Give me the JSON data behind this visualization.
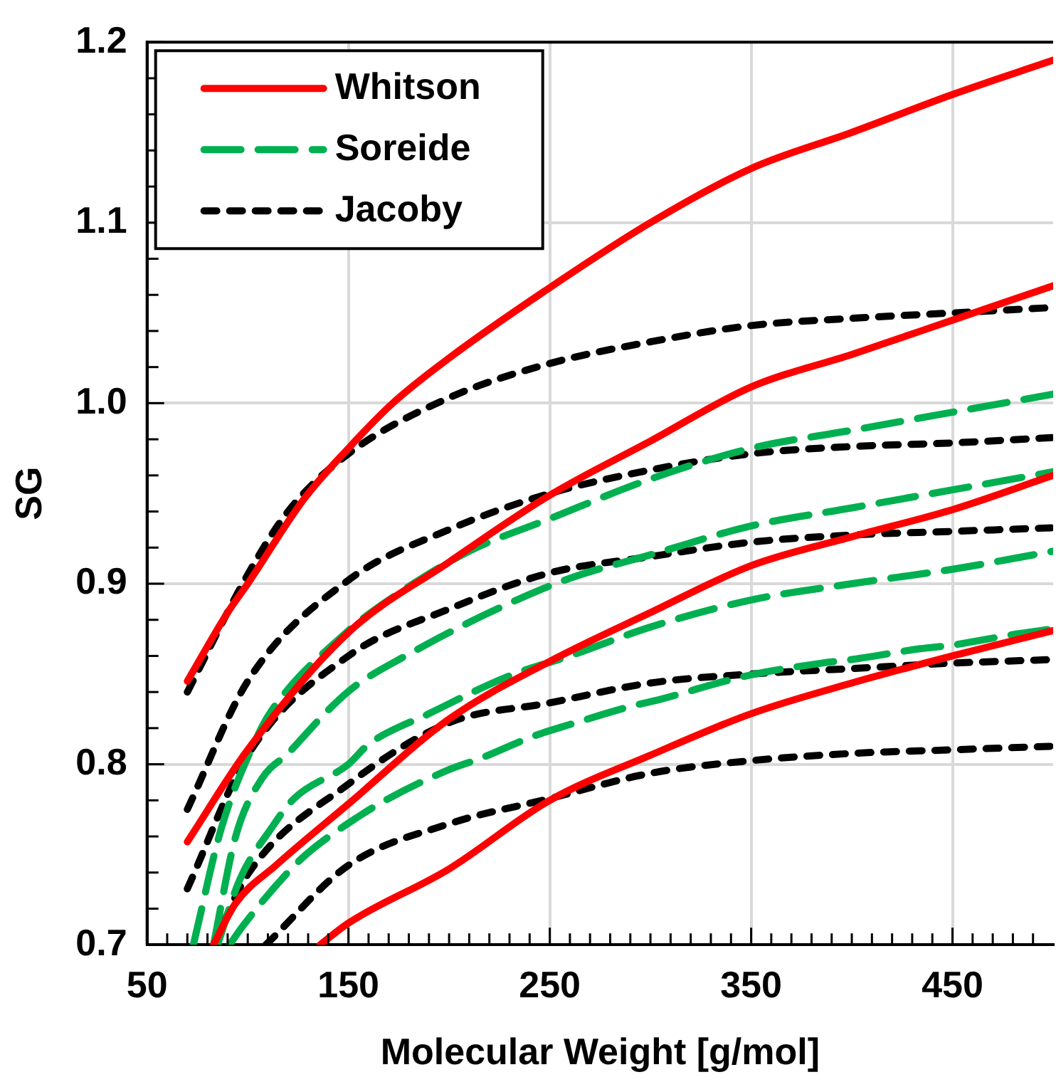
{
  "chart_data": {
    "type": "line",
    "xlabel": "Molecular Weight [g/mol]",
    "ylabel": "SG",
    "xlim": [
      50,
      500
    ],
    "ylim": [
      0.7,
      1.2
    ],
    "xticks": [
      50,
      {
        "value": 60,
        "label": null
      },
      {
        "value": 70,
        "label": null
      },
      {
        "value": 80,
        "label": null
      },
      {
        "value": 90,
        "label": null
      },
      {
        "value": 100,
        "label": null
      },
      {
        "value": 110,
        "label": null
      },
      {
        "value": 120,
        "label": null
      },
      {
        "value": 130,
        "label": null
      },
      {
        "value": 140,
        "label": null
      },
      150,
      {
        "value": 160,
        "label": null
      },
      {
        "value": 170,
        "label": null
      },
      {
        "value": 180,
        "label": null
      },
      {
        "value": 190,
        "label": null
      },
      {
        "value": 200,
        "label": null
      },
      {
        "value": 210,
        "label": null
      },
      {
        "value": 220,
        "label": null
      },
      {
        "value": 230,
        "label": null
      },
      {
        "value": 240,
        "label": null
      },
      250,
      {
        "value": 260,
        "label": null
      },
      {
        "value": 270,
        "label": null
      },
      {
        "value": 280,
        "label": null
      },
      {
        "value": 290,
        "label": null
      },
      {
        "value": 300,
        "label": null
      },
      {
        "value": 310,
        "label": null
      },
      {
        "value": 320,
        "label": null
      },
      {
        "value": 330,
        "label": null
      },
      {
        "value": 340,
        "label": null
      },
      350,
      {
        "value": 360,
        "label": null
      },
      {
        "value": 370,
        "label": null
      },
      {
        "value": 380,
        "label": null
      },
      {
        "value": 390,
        "label": null
      },
      {
        "value": 400,
        "label": null
      },
      {
        "value": 410,
        "label": null
      },
      {
        "value": 420,
        "label": null
      },
      {
        "value": 430,
        "label": null
      },
      {
        "value": 440,
        "label": null
      },
      450,
      {
        "value": 460,
        "label": null
      },
      {
        "value": 470,
        "label": null
      },
      {
        "value": 480,
        "label": null
      },
      {
        "value": 490,
        "label": null
      }
    ],
    "yticks": [
      {
        "value": 0.7,
        "label": "0.7"
      },
      {
        "value": 0.72,
        "label": null
      },
      {
        "value": 0.74,
        "label": null
      },
      {
        "value": 0.76,
        "label": null
      },
      {
        "value": 0.78,
        "label": null
      },
      {
        "value": 0.8,
        "label": "0.8"
      },
      {
        "value": 0.82,
        "label": null
      },
      {
        "value": 0.84,
        "label": null
      },
      {
        "value": 0.86,
        "label": null
      },
      {
        "value": 0.88,
        "label": null
      },
      {
        "value": 0.9,
        "label": "0.9"
      },
      {
        "value": 0.92,
        "label": null
      },
      {
        "value": 0.94,
        "label": null
      },
      {
        "value": 0.96,
        "label": null
      },
      {
        "value": 0.98,
        "label": null
      },
      {
        "value": 1.0,
        "label": "1.0"
      },
      {
        "value": 1.02,
        "label": null
      },
      {
        "value": 1.04,
        "label": null
      },
      {
        "value": 1.06,
        "label": null
      },
      {
        "value": 1.08,
        "label": null
      },
      {
        "value": 1.1,
        "label": "1.1"
      },
      {
        "value": 1.12,
        "label": null
      },
      {
        "value": 1.14,
        "label": null
      },
      {
        "value": 1.16,
        "label": null
      },
      {
        "value": 1.18,
        "label": null
      },
      {
        "value": 1.2,
        "label": "1.2"
      }
    ],
    "grid": true,
    "legend": "top left",
    "marker": "none",
    "series": [
      {
        "name": "Whitson",
        "color": "#ff0000",
        "line_style": "solid",
        "x": [
          70,
          90,
          100,
          128,
          150,
          172,
          200,
          250,
          300,
          350,
          400,
          450,
          500
        ],
        "values": [
          0.846,
          0.884,
          0.9,
          0.947,
          0.975,
          1.0,
          1.025,
          1.064,
          1.1,
          1.13,
          1.15,
          1.171,
          1.19
        ]
      },
      {
        "color": "#ff0000",
        "line_style": "solid",
        "x": [
          70,
          100,
          150,
          200,
          250,
          300,
          350,
          400,
          450,
          500
        ],
        "values": [
          0.757,
          0.808,
          0.873,
          0.912,
          0.949,
          0.979,
          1.009,
          1.027,
          1.046,
          1.065
        ]
      },
      {
        "color": "#ff0000",
        "line_style": "solid",
        "x": [
          83,
          94,
          114,
          150,
          200,
          250,
          300,
          350,
          400,
          450,
          500
        ],
        "values": [
          0.7,
          0.723,
          0.744,
          0.778,
          0.825,
          0.857,
          0.884,
          0.91,
          0.926,
          0.941,
          0.96
        ]
      },
      {
        "color": "#ff0000",
        "line_style": "solid",
        "x": [
          136,
          150,
          200,
          250,
          300,
          350,
          400,
          450,
          500
        ],
        "values": [
          0.7,
          0.712,
          0.742,
          0.78,
          0.805,
          0.828,
          0.845,
          0.86,
          0.874
        ]
      },
      {
        "name": "Soreide",
        "color": "#00b050",
        "line_style": "dashdot",
        "x": [
          73,
          87,
          105,
          112,
          150,
          170,
          210,
          250,
          300,
          350,
          400,
          450,
          500
        ],
        "values": [
          0.7,
          0.765,
          0.816,
          0.83,
          0.874,
          0.891,
          0.918,
          0.936,
          0.958,
          0.975,
          0.985,
          0.995,
          1.005
        ]
      },
      {
        "color": "#00b050",
        "line_style": "dashdot",
        "x": [
          83,
          94,
          107,
          120,
          140,
          153,
          180,
          220,
          260,
          300,
          350,
          400,
          450,
          500
        ],
        "values": [
          0.7,
          0.76,
          0.792,
          0.806,
          0.83,
          0.843,
          0.861,
          0.884,
          0.903,
          0.916,
          0.932,
          0.942,
          0.952,
          0.962
        ]
      },
      {
        "color": "#00b050",
        "line_style": "dashdot",
        "x": [
          85,
          96,
          112,
          123,
          150,
          160,
          190,
          230,
          260,
          300,
          350,
          400,
          450,
          500
        ],
        "values": [
          0.7,
          0.736,
          0.765,
          0.781,
          0.8,
          0.811,
          0.828,
          0.849,
          0.86,
          0.876,
          0.891,
          0.9,
          0.908,
          0.918
        ]
      },
      {
        "color": "#00b050",
        "line_style": "dashdot",
        "x": [
          91,
          98,
          119,
          130,
          155,
          170,
          200,
          215,
          243,
          260,
          290,
          305,
          337,
          352,
          385,
          400,
          434,
          450,
          481,
          500
        ],
        "values": [
          0.7,
          0.711,
          0.739,
          0.751,
          0.771,
          0.781,
          0.797,
          0.803,
          0.816,
          0.822,
          0.832,
          0.836,
          0.846,
          0.85,
          0.856,
          0.858,
          0.864,
          0.866,
          0.872,
          0.875
        ]
      },
      {
        "name": "Jacoby",
        "color": "#000000",
        "line_style": "dashed",
        "x": [
          70,
          100,
          120,
          150,
          200,
          250,
          300,
          350,
          400,
          450,
          500
        ],
        "values": [
          0.84,
          0.905,
          0.94,
          0.972,
          1.003,
          1.022,
          1.034,
          1.043,
          1.047,
          1.05,
          1.053
        ]
      },
      {
        "color": "#000000",
        "line_style": "dashed",
        "x": [
          70,
          100,
          150,
          200,
          250,
          300,
          350,
          400,
          450,
          500
        ],
        "values": [
          0.775,
          0.846,
          0.902,
          0.93,
          0.95,
          0.963,
          0.972,
          0.976,
          0.978,
          0.981
        ]
      },
      {
        "color": "#000000",
        "line_style": "dashed",
        "x": [
          70,
          100,
          150,
          200,
          250,
          300,
          350,
          400,
          450,
          500
        ],
        "values": [
          0.731,
          0.805,
          0.86,
          0.886,
          0.906,
          0.915,
          0.923,
          0.927,
          0.929,
          0.931
        ]
      },
      {
        "color": "#000000",
        "line_style": "dashed",
        "x": [
          83,
          100,
          150,
          200,
          250,
          300,
          350,
          400,
          450,
          500
        ],
        "values": [
          0.7,
          0.739,
          0.789,
          0.823,
          0.834,
          0.845,
          0.85,
          0.853,
          0.856,
          0.858
        ]
      },
      {
        "color": "#000000",
        "line_style": "dashed",
        "x": [
          109,
          150,
          200,
          250,
          300,
          350,
          400,
          450,
          500
        ],
        "values": [
          0.7,
          0.744,
          0.767,
          0.781,
          0.795,
          0.802,
          0.806,
          0.808,
          0.81
        ]
      }
    ]
  }
}
